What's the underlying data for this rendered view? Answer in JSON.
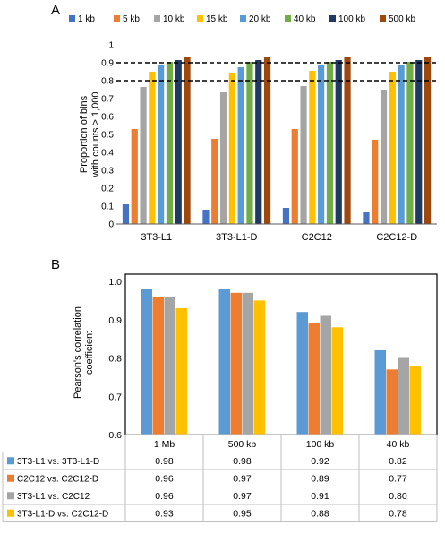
{
  "panel_labels": {
    "a": "A",
    "b": "B"
  },
  "colors": {
    "1 kb": "#4472c4",
    "5 kb": "#ed7d31",
    "10 kb": "#a5a5a5",
    "15 kb": "#ffc000",
    "20 kb": "#5b9bd5",
    "40 kb": "#70ad47",
    "100 kb": "#1f3864",
    "500 kb": "#9e480e",
    "comp1": "#5b9bd5",
    "comp2": "#ed7d31",
    "comp3": "#a5a5a5",
    "comp4": "#ffc000"
  },
  "chart_data": [
    {
      "type": "bar",
      "panel": "A",
      "ylabel": [
        "Proportion of bins",
        "with counts > 1,000"
      ],
      "ylim": [
        0,
        1
      ],
      "yticks": [
        "0",
        "0.1",
        "0.2",
        "0.3",
        "0.4",
        "0.5",
        "0.6",
        "0.7",
        "0.8",
        "0.9",
        "1"
      ],
      "categories": [
        "3T3-L1",
        "3T3-L1-D",
        "C2C12",
        "C2C12-D"
      ],
      "reference_lines": [
        0.8,
        0.9
      ],
      "legend_position": "top",
      "series": [
        {
          "name": "1 kb",
          "values": [
            0.11,
            0.08,
            0.09,
            0.065
          ]
        },
        {
          "name": "5 kb",
          "values": [
            0.53,
            0.475,
            0.53,
            0.47
          ]
        },
        {
          "name": "10 kb",
          "values": [
            0.765,
            0.735,
            0.77,
            0.75
          ]
        },
        {
          "name": "15 kb",
          "values": [
            0.85,
            0.84,
            0.855,
            0.85
          ]
        },
        {
          "name": "20 kb",
          "values": [
            0.885,
            0.875,
            0.89,
            0.885
          ]
        },
        {
          "name": "40 kb",
          "values": [
            0.905,
            0.905,
            0.905,
            0.905
          ]
        },
        {
          "name": "100 kb",
          "values": [
            0.915,
            0.915,
            0.915,
            0.915
          ]
        },
        {
          "name": "500 kb",
          "values": [
            0.93,
            0.93,
            0.93,
            0.93
          ]
        }
      ]
    },
    {
      "type": "bar",
      "panel": "B",
      "ylabel": [
        "Pearson's correlation",
        "coefficient"
      ],
      "ylim": [
        0.6,
        1.0
      ],
      "yticks": [
        "0.6",
        "0.7",
        "0.8",
        "0.9",
        "1.0"
      ],
      "categories": [
        "1 Mb",
        "500 kb",
        "100 kb",
        "40 kb"
      ],
      "series": [
        {
          "name": "3T3-L1 vs. 3T3-L1-D",
          "values": [
            0.98,
            0.98,
            0.92,
            0.82
          ],
          "labels": [
            "0.98",
            "0.98",
            "0.92",
            "0.82"
          ]
        },
        {
          "name": "C2C12 vs. C2C12-D",
          "values": [
            0.96,
            0.97,
            0.89,
            0.77
          ],
          "labels": [
            "0.96",
            "0.97",
            "0.89",
            "0.77"
          ]
        },
        {
          "name": "3T3-L1 vs. C2C12",
          "values": [
            0.96,
            0.97,
            0.91,
            0.8
          ],
          "labels": [
            "0.96",
            "0.97",
            "0.91",
            "0.80"
          ]
        },
        {
          "name": "3T3-L1-D vs. C2C12-D",
          "values": [
            0.93,
            0.95,
            0.88,
            0.78
          ],
          "labels": [
            "0.93",
            "0.95",
            "0.88",
            "0.78"
          ]
        }
      ]
    }
  ]
}
